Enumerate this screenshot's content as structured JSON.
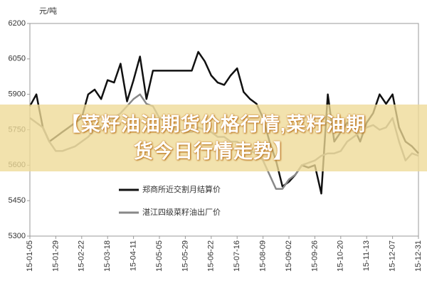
{
  "chart_data": {
    "type": "line",
    "title_lines": [
      "【菜籽油油期货价格行情,菜籽油期",
      "货今日行情走势】"
    ],
    "ylabel": "元/吨",
    "categories": [
      "15-01-05",
      null,
      null,
      null,
      "15-01-29",
      null,
      null,
      null,
      "15-02-22",
      null,
      null,
      null,
      "15-03-18",
      null,
      null,
      null,
      "15-04-11",
      null,
      null,
      null,
      "15-05-05",
      null,
      null,
      null,
      "15-05-29",
      null,
      null,
      null,
      "15-06-22",
      null,
      null,
      null,
      "15-07-16",
      null,
      null,
      null,
      "15-08-09",
      null,
      null,
      null,
      "15-09-02",
      null,
      null,
      null,
      "15-09-26",
      null,
      null,
      null,
      "15-10-20",
      null,
      null,
      null,
      "15-11-13",
      null,
      null,
      null,
      "15-12-07",
      null,
      null,
      null,
      "15-12-31"
    ],
    "series": [
      {
        "name": "郑商所近交割月结算价",
        "color": "#111111",
        "values": [
          5850,
          5900,
          5760,
          5700,
          5720,
          5740,
          5760,
          5780,
          5800,
          5900,
          5920,
          5880,
          5960,
          5950,
          6030,
          5870,
          5960,
          6060,
          5880,
          6000,
          6000,
          6000,
          6000,
          6000,
          6000,
          6000,
          6080,
          6040,
          5980,
          5950,
          5940,
          5980,
          6010,
          5910,
          5880,
          5860,
          5800,
          5700,
          5620,
          5510,
          5530,
          5560,
          5600,
          5590,
          5600,
          5480,
          5900,
          5700,
          5740,
          5780,
          5760,
          5700,
          5780,
          5820,
          5900,
          5860,
          5900,
          5760,
          5700,
          5680,
          5650
        ]
      },
      {
        "name": "湛江四级菜籽油出厂价",
        "color": "#888888",
        "values": [
          5800,
          5780,
          5760,
          5700,
          5660,
          5660,
          5670,
          5680,
          5700,
          5720,
          5750,
          5760,
          5780,
          5800,
          5820,
          5850,
          5880,
          5900,
          5860,
          5850,
          5800,
          5780,
          5760,
          5750,
          5740,
          5740,
          5760,
          5750,
          5740,
          5720,
          5720,
          5700,
          5700,
          5680,
          5660,
          5650,
          5620,
          5560,
          5500,
          5500,
          5540,
          5560,
          5600,
          5610,
          5620,
          5640,
          5650,
          5650,
          5660,
          5700,
          5720,
          5740,
          5760,
          5770,
          5750,
          5760,
          5800,
          5700,
          5620,
          5650,
          5640
        ]
      }
    ],
    "ylim": [
      5300,
      6200
    ],
    "yticks": [
      5300,
      5450,
      5600,
      5750,
      5900,
      6050,
      6200
    ],
    "legend": "lower center",
    "grid": false
  }
}
